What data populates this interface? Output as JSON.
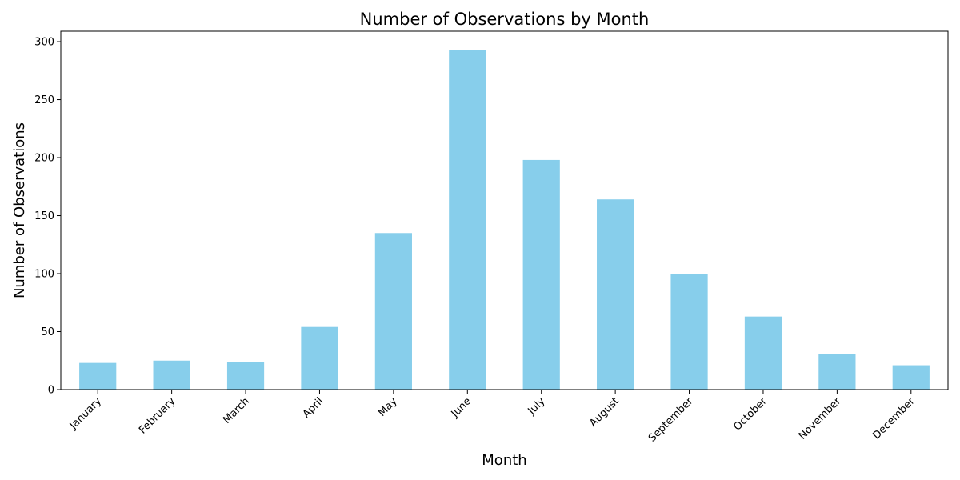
{
  "chart_data": {
    "type": "bar",
    "title": "Number of Observations by Month",
    "xlabel": "Month",
    "ylabel": "Number of Observations",
    "categories": [
      "January",
      "February",
      "March",
      "April",
      "May",
      "June",
      "July",
      "August",
      "September",
      "October",
      "November",
      "December"
    ],
    "values": [
      23,
      25,
      24,
      54,
      135,
      293,
      198,
      164,
      100,
      63,
      31,
      21
    ],
    "ylim": [
      0,
      309
    ],
    "yticks": [
      0,
      50,
      100,
      150,
      200,
      250,
      300
    ],
    "bar_color": "#87ceeb",
    "grid": false,
    "legend": "none"
  }
}
